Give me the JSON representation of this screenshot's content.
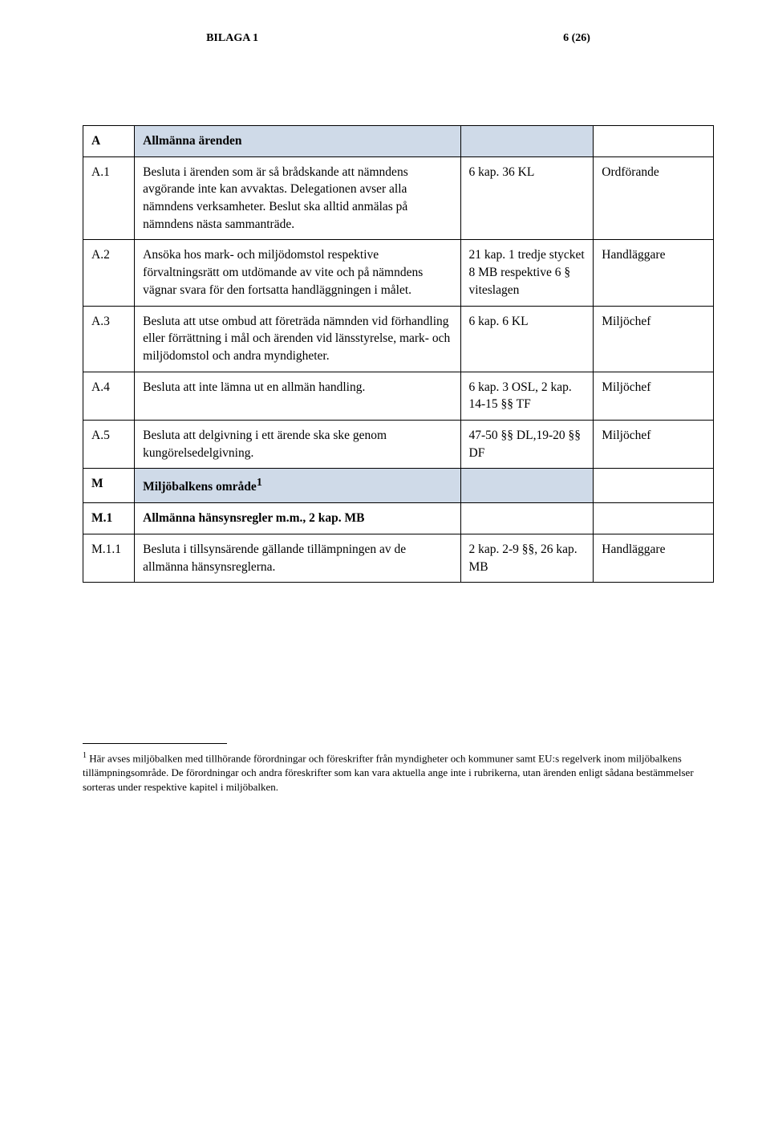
{
  "header": {
    "appendix": "BILAGA 1",
    "page": "6 (26)"
  },
  "sections": [
    {
      "key": "A",
      "title": "Allmänna ärenden",
      "rows": [
        {
          "num": "A.1",
          "text": "Besluta i ärenden som är så brådskande att nämndens avgörande inte kan avvaktas. Delegationen avser alla nämndens verksamheter. Beslut ska alltid anmälas på nämndens nästa sammanträde.",
          "ref": "6 kap. 36 KL",
          "resp": "Ordförande"
        },
        {
          "num": "A.2",
          "text": "Ansöka hos mark- och miljödomstol respektive förvaltningsrätt om utdömande av vite och på nämndens vägnar svara för den fortsatta handläggningen i målet.",
          "ref": "21 kap. 1 tredje stycket 8 MB respektive 6 § viteslagen",
          "resp": "Handläggare"
        },
        {
          "num": "A.3",
          "text": "Besluta att utse ombud att företräda nämnden vid förhandling eller förrättning i mål och ärenden vid länsstyrelse, mark- och miljö­domstol och andra myndigheter.",
          "ref": "6 kap. 6 KL",
          "resp": "Miljöchef"
        },
        {
          "num": "A.4",
          "text": "Besluta att inte lämna ut en allmän handling.",
          "ref": "6 kap. 3 OSL, 2 kap. 14-15 §§ TF",
          "resp": "Miljöchef"
        },
        {
          "num": "A.5",
          "text": "Besluta att delgivning i ett ärende ska ske genom kungörelsedelgivning.",
          "ref": "47-50 §§ DL,19-20 §§ DF",
          "resp": "Miljöchef"
        }
      ]
    },
    {
      "key": "M",
      "title": "Miljöbalkens område",
      "title_footnote": "1",
      "subsections": [
        {
          "key": "M.1",
          "title": "Allmänna hänsynsregler m.m., 2 kap. MB",
          "rows": [
            {
              "num": "M.1.1",
              "text": "Besluta i tillsynsärende gällande tillämpningen av de allmänna hänsynsreglerna.",
              "ref": "2 kap. 2-9 §§, 26 kap. MB",
              "resp": "Handläggare"
            }
          ]
        }
      ]
    }
  ],
  "footnote": {
    "marker": "1",
    "text": " Här avses miljöbalken med tillhörande förordningar och föreskrifter från myndigheter och kommuner samt EU:s regelverk inom miljöbalkens tillämpningsområde. De förordningar och andra föreskrifter som kan vara aktuella ange inte i rubrikerna, utan ärenden enligt sådana bestämmelser sorteras under respektive kapitel i miljöbalken."
  },
  "colors": {
    "section_bg": "#cfdae8",
    "border": "#000000",
    "text": "#000000",
    "page_bg": "#ffffff"
  },
  "typography": {
    "body_font": "Times New Roman, serif",
    "body_size_pt": 12,
    "section_size_pt": 20,
    "subsection_size_pt": 14
  }
}
